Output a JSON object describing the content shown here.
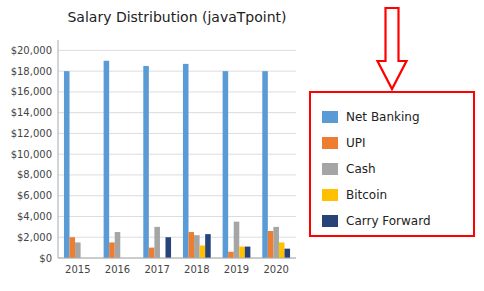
{
  "chart_data": {
    "type": "bar",
    "title": "Salary Distribution (javaTpoint)",
    "categories": [
      "2015",
      "2016",
      "2017",
      "2018",
      "2019",
      "2020"
    ],
    "series": [
      {
        "name": "Net Banking",
        "color": "#5B9BD5",
        "values": [
          18000,
          19000,
          18500,
          18700,
          18000,
          18000
        ]
      },
      {
        "name": "UPI",
        "color": "#ED7D31",
        "values": [
          2000,
          1500,
          1000,
          2500,
          600,
          2600
        ]
      },
      {
        "name": "Cash",
        "color": "#A5A5A5",
        "values": [
          1500,
          2500,
          3000,
          2200,
          3500,
          3000
        ]
      },
      {
        "name": "Bitcoin",
        "color": "#FFC000",
        "values": [
          0,
          0,
          0,
          1200,
          1100,
          1500
        ]
      },
      {
        "name": "Carry Forward",
        "color": "#264478",
        "values": [
          0,
          0,
          2000,
          2300,
          1100,
          900
        ]
      }
    ],
    "ylim": [
      0,
      21000
    ],
    "yticks": [
      {
        "value": 0,
        "label": "$0"
      },
      {
        "value": 2000,
        "label": "$2,000"
      },
      {
        "value": 4000,
        "label": "$4,000"
      },
      {
        "value": 6000,
        "label": "$6,000"
      },
      {
        "value": 8000,
        "label": "$8,000"
      },
      {
        "value": 10000,
        "label": "$10,000"
      },
      {
        "value": 12000,
        "label": "$12,000"
      },
      {
        "value": 14000,
        "label": "$14,000"
      },
      {
        "value": 16000,
        "label": "$16,000"
      },
      {
        "value": 18000,
        "label": "$18,000"
      },
      {
        "value": 20000,
        "label": "$20,000"
      }
    ],
    "grid": true,
    "legend": "right"
  }
}
